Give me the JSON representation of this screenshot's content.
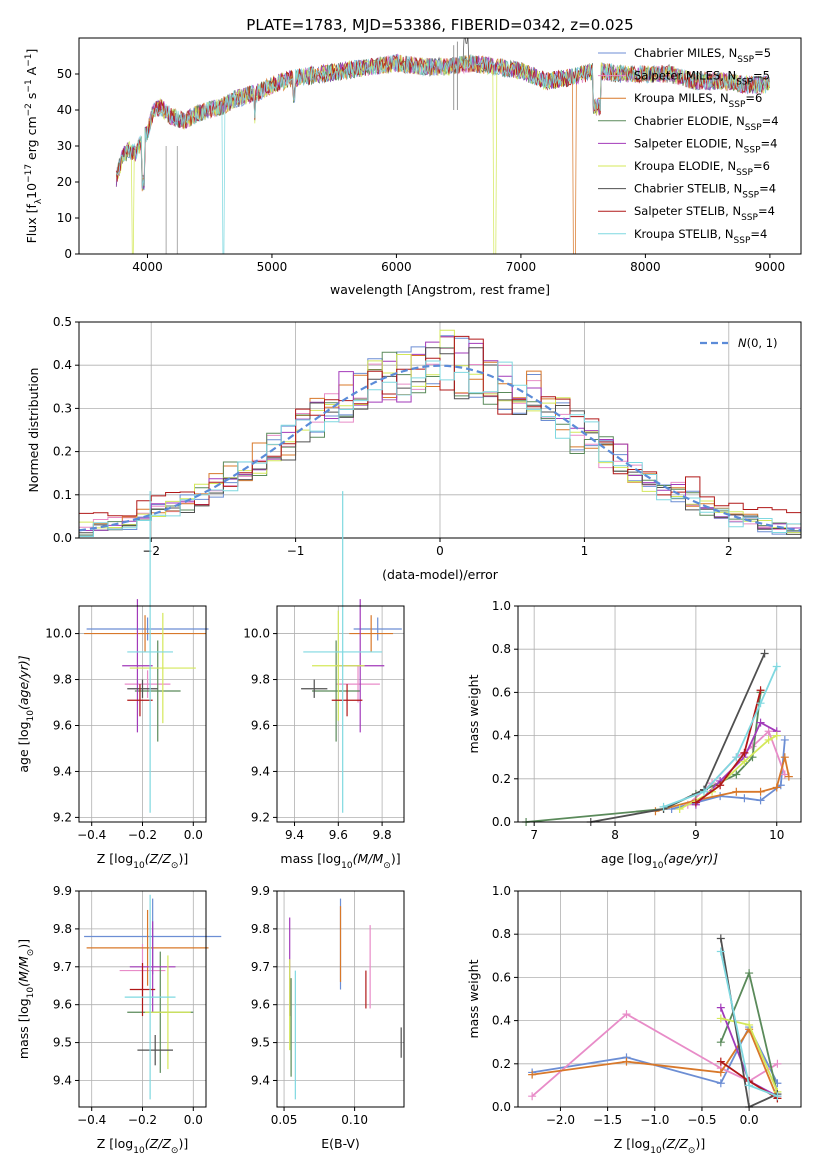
{
  "title": "PLATE=1783, MJD=53386, FIBERID=0342, z=0.025",
  "colors": {
    "c0": "#6c8ed4",
    "c1": "#e88cc8",
    "c2": "#d8782a",
    "c3": "#5a8a5a",
    "c4": "#a23aba",
    "c5": "#d4e85a",
    "c6": "#505050",
    "c7": "#b01818",
    "c8": "#7fd8e0"
  },
  "models": [
    {
      "name": "Chabrier MILES",
      "nssp": "5"
    },
    {
      "name": "Salpeter MILES",
      "nssp": "5"
    },
    {
      "name": "Kroupa MILES",
      "nssp": "6"
    },
    {
      "name": "Chabrier ELODIE",
      "nssp": "4"
    },
    {
      "name": "Salpeter ELODIE",
      "nssp": "4"
    },
    {
      "name": "Kroupa ELODIE",
      "nssp": "6"
    },
    {
      "name": "Chabrier STELIB",
      "nssp": "4"
    },
    {
      "name": "Salpeter STELIB",
      "nssp": "4"
    },
    {
      "name": "Kroupa STELIB",
      "nssp": "4"
    }
  ],
  "chart_data": [
    {
      "id": "spectrum",
      "type": "line",
      "xlabel": "wavelength [Angstrom, rest frame]",
      "ylabel_prefix": "Flux [f",
      "ylabel_mid": "10",
      "ylabel_units": " erg cm",
      "ylabel_s": " s",
      "ylabel_A": " A",
      "ylabel_end": "]",
      "xlim": [
        3450,
        9250
      ],
      "ylim": [
        0,
        60
      ],
      "xticks": [
        4000,
        5000,
        6000,
        7000,
        8000,
        9000
      ],
      "yticks": [
        0,
        10,
        20,
        30,
        40,
        50
      ],
      "continuum_x": [
        3750,
        3800,
        3850,
        3900,
        3950,
        4000,
        4050,
        4100,
        4200,
        4300,
        4400,
        4500,
        4600,
        4700,
        4800,
        4900,
        5000,
        5200,
        5400,
        5600,
        5800,
        6000,
        6200,
        6400,
        6600,
        6800,
        7000,
        7200,
        7400,
        7600,
        7800,
        8000,
        8200,
        8400,
        8600,
        8800,
        9000
      ],
      "continuum_y": [
        21,
        27,
        29,
        28,
        31,
        34,
        40,
        41,
        38,
        37,
        39,
        40,
        41,
        43,
        44,
        45,
        47,
        49,
        50,
        51,
        52,
        53,
        52,
        52,
        53,
        52,
        51,
        48,
        49,
        51,
        50,
        50,
        50,
        48,
        48,
        47,
        47
      ],
      "emission_x": [
        6460,
        6490
      ],
      "emission_y": [
        58,
        59
      ]
    },
    {
      "id": "residuals",
      "type": "histogram",
      "xlabel": "(data-model)/error",
      "ylabel": "Normed distribution",
      "xlim": [
        -2.5,
        2.5
      ],
      "ylim": [
        0,
        0.5
      ],
      "xticks": [
        -2,
        -1,
        0,
        1,
        2
      ],
      "yticks": [
        0.0,
        0.1,
        0.2,
        0.3,
        0.4,
        0.5
      ],
      "bin_width": 0.1,
      "reference_label": "N(0,1)",
      "reference_mean": 0,
      "reference_sigma": 1
    },
    {
      "id": "age_vs_Z",
      "type": "scatter",
      "xlabel_prefix": "Z [log",
      "xlabel_suffix": "(Z/Z",
      "ylabel_prefix": "age  [log",
      "ylabel_suffix": "(age/yr)]",
      "xlim": [
        -0.45,
        0.05
      ],
      "ylim": [
        9.18,
        10.12
      ],
      "xticks": [
        -0.4,
        -0.2,
        0.0
      ],
      "yticks": [
        9.2,
        9.4,
        9.6,
        9.8,
        10.0
      ],
      "points": [
        {
          "x": -0.18,
          "y": 10.02,
          "xerr": 0.24,
          "yerr": 0.05
        },
        {
          "x": -0.18,
          "y": 9.78,
          "xerr": 0.09,
          "yerr": 0.06
        },
        {
          "x": -0.19,
          "y": 10.0,
          "xerr": 0.24,
          "yerr": 0.08
        },
        {
          "x": -0.14,
          "y": 9.75,
          "xerr": 0.09,
          "yerr": 0.22
        },
        {
          "x": -0.22,
          "y": 9.86,
          "xerr": 0.06,
          "yerr": 0.29
        },
        {
          "x": -0.12,
          "y": 9.85,
          "xerr": 0.13,
          "yerr": 0.24
        },
        {
          "x": -0.2,
          "y": 9.76,
          "xerr": 0.06,
          "yerr": 0.04
        },
        {
          "x": -0.21,
          "y": 9.71,
          "xerr": 0.05,
          "yerr": 0.07
        },
        {
          "x": -0.17,
          "y": 9.92,
          "xerr": 0.09,
          "yerr": 0.7
        }
      ]
    },
    {
      "id": "age_vs_mass",
      "type": "scatter",
      "xlabel_prefix": "mass [log",
      "xlabel_suffix": "(M/M",
      "ylabel_prefix": "",
      "ylabel_suffix": "",
      "xlim": [
        9.32,
        9.9
      ],
      "ylim": [
        9.18,
        10.12
      ],
      "xticks": [
        9.4,
        9.6,
        9.8
      ],
      "yticks": [
        9.2,
        9.4,
        9.6,
        9.8,
        10.0
      ],
      "points": [
        {
          "x": 9.78,
          "y": 10.02,
          "xerr": 0.11,
          "yerr": 0.05
        },
        {
          "x": 9.69,
          "y": 9.78,
          "xerr": 0.1,
          "yerr": 0.08
        },
        {
          "x": 9.75,
          "y": 10.0,
          "xerr": 0.1,
          "yerr": 0.08
        },
        {
          "x": 9.59,
          "y": 9.75,
          "xerr": 0.11,
          "yerr": 0.22
        },
        {
          "x": 9.7,
          "y": 9.86,
          "xerr": 0.11,
          "yerr": 0.29
        },
        {
          "x": 9.6,
          "y": 9.86,
          "xerr": 0.12,
          "yerr": 0.24
        },
        {
          "x": 9.49,
          "y": 9.76,
          "xerr": 0.06,
          "yerr": 0.04
        },
        {
          "x": 9.64,
          "y": 9.71,
          "xerr": 0.07,
          "yerr": 0.07
        },
        {
          "x": 9.62,
          "y": 9.92,
          "xerr": 0.18,
          "yerr": 0.7
        }
      ]
    },
    {
      "id": "weight_vs_age",
      "type": "line",
      "xlabel_prefix": "age  [log",
      "xlabel_suffix": "(age/yr)]",
      "ylabel": "mass weight",
      "xlim": [
        6.8,
        10.3
      ],
      "ylim": [
        0,
        1
      ],
      "xticks": [
        7,
        8,
        9,
        10
      ],
      "yticks": [
        0.0,
        0.2,
        0.4,
        0.6,
        0.8,
        1.0
      ],
      "series": [
        {
          "x": [
            8.7,
            9.0,
            9.3,
            9.6,
            9.8,
            10.05,
            10.1
          ],
          "y": [
            0.06,
            0.09,
            0.12,
            0.11,
            0.1,
            0.17,
            0.38
          ]
        },
        {
          "x": [
            8.9,
            9.2,
            9.5,
            9.7,
            9.9,
            10.1
          ],
          "y": [
            0.08,
            0.18,
            0.3,
            0.35,
            0.42,
            0.22
          ]
        },
        {
          "x": [
            8.5,
            9.0,
            9.5,
            9.8,
            10.0,
            10.1,
            10.15
          ],
          "y": [
            0.05,
            0.1,
            0.14,
            0.14,
            0.16,
            0.3,
            0.21
          ]
        },
        {
          "x": [
            6.9,
            8.6,
            9.0,
            9.5,
            9.7,
            9.8
          ],
          "y": [
            0.0,
            0.06,
            0.13,
            0.22,
            0.3,
            0.6
          ]
        },
        {
          "x": [
            9.0,
            9.3,
            9.6,
            9.8,
            10.0
          ],
          "y": [
            0.08,
            0.19,
            0.3,
            0.46,
            0.42
          ]
        },
        {
          "x": [
            8.8,
            9.2,
            9.6,
            9.9,
            10.0
          ],
          "y": [
            0.06,
            0.14,
            0.28,
            0.38,
            0.4
          ]
        },
        {
          "x": [
            7.7,
            8.6,
            9.1,
            9.85
          ],
          "y": [
            0.0,
            0.06,
            0.15,
            0.78
          ]
        },
        {
          "x": [
            9.0,
            9.3,
            9.6,
            9.8
          ],
          "y": [
            0.09,
            0.17,
            0.32,
            0.61
          ]
        },
        {
          "x": [
            8.6,
            9.1,
            9.5,
            9.8,
            10.0
          ],
          "y": [
            0.07,
            0.14,
            0.3,
            0.55,
            0.72
          ]
        }
      ]
    },
    {
      "id": "mass_vs_Z",
      "type": "scatter",
      "xlabel_prefix": "Z [log",
      "xlabel_suffix": "(Z/Z",
      "ylabel_prefix": "mass [log",
      "ylabel_suffix": "(M/M",
      "xlim": [
        -0.45,
        0.05
      ],
      "ylim": [
        9.33,
        9.9
      ],
      "xticks": [
        -0.4,
        -0.2,
        0.0
      ],
      "yticks": [
        9.4,
        9.5,
        9.6,
        9.7,
        9.8,
        9.9
      ],
      "points": [
        {
          "x": -0.16,
          "y": 9.78,
          "xerr": 0.27,
          "yerr": 0.1
        },
        {
          "x": -0.2,
          "y": 9.69,
          "xerr": 0.09,
          "yerr": 0.07
        },
        {
          "x": -0.18,
          "y": 9.75,
          "xerr": 0.24,
          "yerr": 0.1
        },
        {
          "x": -0.13,
          "y": 9.58,
          "xerr": 0.13,
          "yerr": 0.16
        },
        {
          "x": -0.16,
          "y": 9.7,
          "xerr": 0.09,
          "yerr": 0.12
        },
        {
          "x": -0.1,
          "y": 9.58,
          "xerr": 0.09,
          "yerr": 0.15
        },
        {
          "x": -0.15,
          "y": 9.48,
          "xerr": 0.07,
          "yerr": 0.04
        },
        {
          "x": -0.2,
          "y": 9.64,
          "xerr": 0.05,
          "yerr": 0.07
        },
        {
          "x": -0.17,
          "y": 9.62,
          "xerr": 0.1,
          "yerr": 0.27
        }
      ]
    },
    {
      "id": "mass_vs_ebv",
      "type": "scatter",
      "xlabel": "E(B-V)",
      "ylabel_prefix": "",
      "ylabel_suffix": "",
      "xlim": [
        0.045,
        0.135
      ],
      "ylim": [
        9.33,
        9.9
      ],
      "xticks": [
        0.05,
        0.1
      ],
      "yticks": [
        9.4,
        9.5,
        9.6,
        9.7,
        9.8,
        9.9
      ],
      "points": [
        {
          "x": 0.09,
          "y": 9.76,
          "xerr": 0,
          "yerr": 0.12
        },
        {
          "x": 0.111,
          "y": 9.7,
          "xerr": 0,
          "yerr": 0.11
        },
        {
          "x": 0.09,
          "y": 9.76,
          "xerr": 0,
          "yerr": 0.1
        },
        {
          "x": 0.055,
          "y": 9.54,
          "xerr": 0,
          "yerr": 0.13
        },
        {
          "x": 0.054,
          "y": 9.7,
          "xerr": 0,
          "yerr": 0.13
        },
        {
          "x": 0.054,
          "y": 9.6,
          "xerr": 0,
          "yerr": 0.12
        },
        {
          "x": 0.133,
          "y": 9.5,
          "xerr": 0,
          "yerr": 0.04
        },
        {
          "x": 0.108,
          "y": 9.64,
          "xerr": 0,
          "yerr": 0.05
        },
        {
          "x": 0.058,
          "y": 9.52,
          "xerr": 0,
          "yerr": 0.17
        }
      ]
    },
    {
      "id": "weight_vs_Z",
      "type": "line",
      "xlabel_prefix": "Z [log",
      "xlabel_suffix": "(Z/Z",
      "ylabel": "mass weight",
      "xlim": [
        -2.45,
        0.55
      ],
      "ylim": [
        0,
        1
      ],
      "xticks": [
        -2.0,
        -1.5,
        -1.0,
        -0.5,
        0.0
      ],
      "yticks": [
        0.0,
        0.2,
        0.4,
        0.6,
        0.8,
        1.0
      ],
      "series": [
        {
          "x": [
            -2.3,
            -1.3,
            -0.3,
            0.0,
            0.3
          ],
          "y": [
            0.16,
            0.23,
            0.11,
            0.37,
            0.11
          ]
        },
        {
          "x": [
            -2.3,
            -1.3,
            -0.3,
            0.0,
            0.3
          ],
          "y": [
            0.05,
            0.43,
            0.18,
            0.12,
            0.2
          ]
        },
        {
          "x": [
            -2.3,
            -1.3,
            -0.3,
            0.0,
            0.3
          ],
          "y": [
            0.15,
            0.21,
            0.16,
            0.36,
            0.04
          ]
        },
        {
          "x": [
            -0.3,
            0.0,
            0.3
          ],
          "y": [
            0.3,
            0.62,
            0.06
          ]
        },
        {
          "x": [
            -0.3,
            0.0,
            0.3
          ],
          "y": [
            0.46,
            0.12,
            0.05
          ]
        },
        {
          "x": [
            -0.3,
            0.0,
            0.3
          ],
          "y": [
            0.41,
            0.38,
            0.07
          ]
        },
        {
          "x": [
            -0.3,
            0.0,
            0.3
          ],
          "y": [
            0.78,
            0.0,
            0.06
          ]
        },
        {
          "x": [
            -0.3,
            0.0,
            0.3
          ],
          "y": [
            0.21,
            0.12,
            0.04
          ]
        },
        {
          "x": [
            -0.3,
            0.0,
            0.3
          ],
          "y": [
            0.72,
            0.1,
            0.05
          ]
        }
      ]
    }
  ]
}
